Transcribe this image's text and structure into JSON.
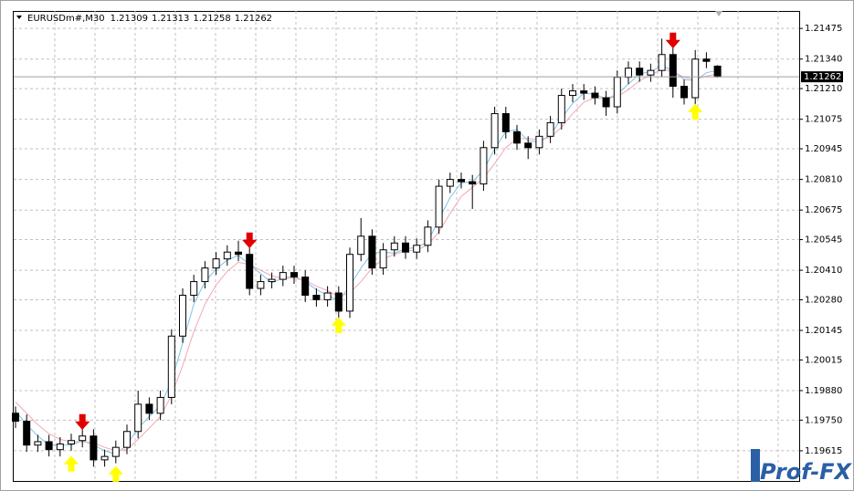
{
  "chart_data": {
    "type": "candlestick",
    "title": "EURUSDm#,M30",
    "watermark": "Prof-FX",
    "open": [
      1.1978,
      1.19745,
      1.1964,
      1.19655,
      1.1962,
      1.19645,
      1.1966,
      1.1968,
      1.19575,
      1.1959,
      1.1963,
      1.197,
      1.1982,
      1.1978,
      1.1985,
      1.2012,
      1.203,
      1.2036,
      1.2042,
      1.2046,
      1.2049,
      1.2048,
      1.2033,
      1.2036,
      1.2037,
      1.204,
      1.2038,
      1.203,
      1.2028,
      1.2031,
      1.2023,
      1.2048,
      1.2056,
      1.2042,
      1.205,
      1.2053,
      1.2049,
      1.2052,
      1.206,
      1.2078,
      1.2081,
      1.208,
      1.2079,
      1.2095,
      1.211,
      1.2102,
      1.2097,
      1.2095,
      1.21,
      1.2106,
      1.2118,
      1.212,
      1.2119,
      1.2117,
      1.2113,
      1.2126,
      1.213,
      1.2127,
      1.2129,
      1.2136,
      1.2122,
      1.2117,
      1.2134,
      1.21309
    ],
    "high": [
      1.1981,
      1.19775,
      1.19685,
      1.19685,
      1.19675,
      1.1969,
      1.1971,
      1.1971,
      1.1962,
      1.1966,
      1.1973,
      1.1988,
      1.1985,
      1.1988,
      1.2015,
      1.2033,
      1.2039,
      1.2045,
      1.2049,
      1.2052,
      1.2054,
      1.2051,
      1.2039,
      1.204,
      1.2043,
      1.2043,
      1.2041,
      1.2033,
      1.2034,
      1.2034,
      1.2051,
      1.2064,
      1.2059,
      1.2053,
      1.2056,
      1.2056,
      1.2055,
      1.2063,
      1.2081,
      1.2084,
      1.2084,
      1.2083,
      1.2098,
      1.2113,
      1.2113,
      1.2105,
      1.21,
      1.2103,
      1.2109,
      1.2121,
      1.2123,
      1.2123,
      1.2122,
      1.212,
      1.2129,
      1.2133,
      1.2133,
      1.2132,
      1.2143,
      1.2139,
      1.2125,
      1.2138,
      1.2137,
      1.21313
    ],
    "low": [
      1.19715,
      1.1961,
      1.1961,
      1.1959,
      1.1959,
      1.19615,
      1.1963,
      1.19545,
      1.19545,
      1.1956,
      1.196,
      1.1967,
      1.1975,
      1.1975,
      1.1982,
      1.2009,
      1.2027,
      1.2033,
      1.2039,
      1.2043,
      1.2045,
      1.203,
      1.203,
      1.2033,
      1.2034,
      1.2035,
      1.2027,
      1.2025,
      1.2025,
      1.202,
      1.202,
      1.2045,
      1.2039,
      1.2039,
      1.2047,
      1.2046,
      1.2046,
      1.2049,
      1.2057,
      1.2075,
      1.2077,
      1.2068,
      1.2076,
      1.2092,
      1.2099,
      1.2094,
      1.209,
      1.2092,
      1.2097,
      1.2103,
      1.2115,
      1.2116,
      1.2114,
      1.2109,
      1.211,
      1.2123,
      1.2124,
      1.2124,
      1.2126,
      1.2117,
      1.2114,
      1.2114,
      1.213,
      1.21258
    ],
    "close": [
      1.19745,
      1.1964,
      1.19655,
      1.1962,
      1.19645,
      1.1966,
      1.1968,
      1.19575,
      1.1959,
      1.1963,
      1.197,
      1.1982,
      1.1978,
      1.1985,
      1.2012,
      1.203,
      1.2036,
      1.2042,
      1.2046,
      1.2049,
      1.2048,
      1.2033,
      1.2036,
      1.2037,
      1.204,
      1.2038,
      1.203,
      1.2028,
      1.2031,
      1.2023,
      1.2048,
      1.2056,
      1.2042,
      1.205,
      1.2053,
      1.2049,
      1.2052,
      1.206,
      1.2078,
      1.2081,
      1.208,
      1.2079,
      1.2095,
      1.211,
      1.2102,
      1.2097,
      1.2095,
      1.21,
      1.2106,
      1.2118,
      1.212,
      1.2119,
      1.2117,
      1.2113,
      1.2126,
      1.213,
      1.2127,
      1.2129,
      1.2136,
      1.2122,
      1.2117,
      1.2134,
      1.2133,
      1.21262
    ],
    "up_color": "#ffffff",
    "down_color": "#000000",
    "wick_color": "#000000",
    "lines": [
      {
        "color": "#7cc4e8",
        "values": [
          1.1979,
          1.1973,
          1.1968,
          1.1964,
          1.1964,
          1.1964,
          1.1966,
          1.1964,
          1.19615,
          1.196,
          1.1964,
          1.19715,
          1.19765,
          1.19815,
          1.1992,
          1.2009,
          1.2026,
          1.2036,
          1.20415,
          1.20455,
          1.20475,
          1.20435,
          1.20395,
          1.20355,
          1.20375,
          1.20385,
          1.2036,
          1.20325,
          1.203,
          1.20275,
          1.2034,
          1.2042,
          1.20485,
          1.2049,
          1.20485,
          1.20505,
          1.2051,
          1.20535,
          1.20635,
          1.2073,
          1.20795,
          1.208,
          1.2085,
          1.20945,
          1.2102,
          1.2103,
          1.2098,
          1.20975,
          1.21005,
          1.2108,
          1.21145,
          1.2119,
          1.21185,
          1.21165,
          1.21185,
          1.2123,
          1.21275,
          1.21285,
          1.2131,
          1.2129,
          1.2125,
          1.21245,
          1.2128,
          1.2129
        ]
      },
      {
        "color": "#f2a7b8",
        "values": [
          1.1983,
          1.1978,
          1.1973,
          1.1969,
          1.19665,
          1.19655,
          1.19655,
          1.1965,
          1.1963,
          1.19615,
          1.1962,
          1.19665,
          1.19715,
          1.19765,
          1.1986,
          1.1999,
          1.2014,
          1.2026,
          1.20345,
          1.20405,
          1.20445,
          1.20435,
          1.2041,
          1.20385,
          1.20375,
          1.20375,
          1.20365,
          1.2034,
          1.2032,
          1.20295,
          1.2031,
          1.2036,
          1.2042,
          1.2046,
          1.2048,
          1.20495,
          1.205,
          1.2052,
          1.2058,
          1.2066,
          1.20735,
          1.20775,
          1.20815,
          1.2088,
          1.2095,
          1.2099,
          1.2099,
          1.20985,
          1.20995,
          1.2104,
          1.211,
          1.2115,
          1.2117,
          1.21165,
          1.21175,
          1.21205,
          1.21245,
          1.2127,
          1.21295,
          1.21285,
          1.2126,
          1.2125,
          1.21265,
          1.21275
        ]
      }
    ],
    "signals": [
      {
        "direction": "up",
        "color": "#ffff00",
        "x": [
          5,
          9,
          29,
          61
        ],
        "values": [
          1.1959,
          1.19545,
          1.202,
          1.2114
        ]
      },
      {
        "direction": "down",
        "color": "#e00000",
        "x": [
          6,
          21,
          59
        ],
        "values": [
          1.1971,
          1.2051,
          1.2139
        ]
      }
    ],
    "ylim": [
      1.19478,
      1.21552
    ],
    "yticks": [
      1.21475,
      {
        "value": 1.2134,
        "label": "1.21340"
      },
      {
        "value": 1.2121,
        "label": "1.21210"
      },
      1.21075,
      1.20945,
      {
        "value": 1.2081,
        "label": "1.20810"
      },
      1.20675,
      1.20545,
      {
        "value": 1.2041,
        "label": "1.20410"
      },
      {
        "value": 1.2028,
        "label": "1.20280"
      },
      1.20145,
      1.20015,
      {
        "value": 1.1988,
        "label": "1.19880"
      },
      {
        "value": 1.1975,
        "label": "1.19750"
      },
      1.19615
    ],
    "grid": true
  }
}
